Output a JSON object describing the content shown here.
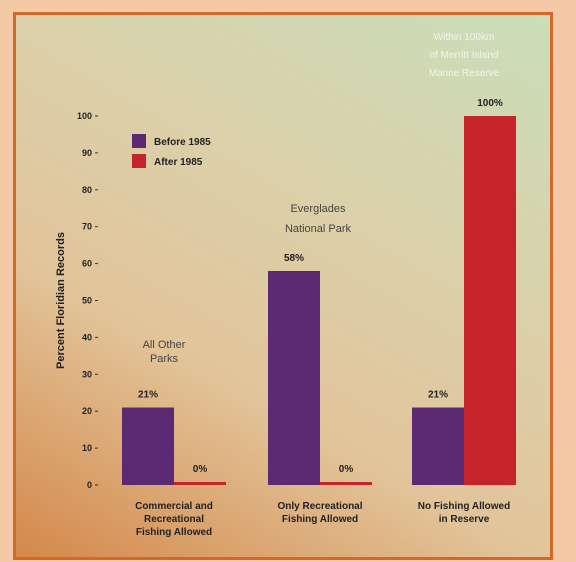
{
  "chart_data": {
    "type": "bar",
    "ylabel": "Percent Floridian Records",
    "ylim": [
      0,
      100
    ],
    "yticks": [
      0,
      10,
      20,
      30,
      40,
      50,
      60,
      70,
      80,
      90,
      100
    ],
    "categories": [
      [
        "Commercial and",
        "Recreational",
        "Fishing Allowed"
      ],
      [
        "Only Recreational",
        "Fishing Allowed"
      ],
      [
        "No Fishing Allowed",
        "in Reserve"
      ]
    ],
    "series": [
      {
        "name": "Before 1985",
        "color": "#5c2a73",
        "values": [
          21,
          58,
          21
        ],
        "labels": [
          "21%",
          "58%",
          "21%"
        ]
      },
      {
        "name": "After 1985",
        "color": "#c4242a",
        "values": [
          0,
          0,
          100
        ],
        "labels": [
          "0%",
          "0%",
          "100%"
        ]
      }
    ],
    "annotations": [
      [
        "All Other",
        "Parks"
      ],
      [
        "Everglades",
        "National Park"
      ],
      [
        "Within 100km",
        "of Merritt Island",
        "Marine Reserve"
      ]
    ],
    "legend_position": "top-left"
  }
}
